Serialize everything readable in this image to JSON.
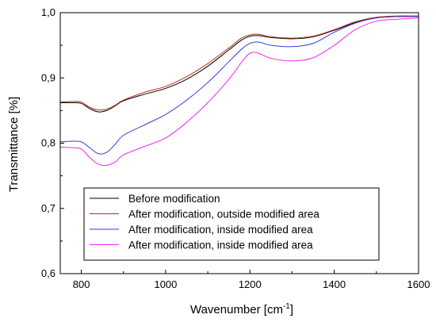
{
  "chart_data": {
    "type": "line",
    "xlabel": "Wavenumber [cm",
    "xlabel_sup": "-1",
    "xlabel_suffix": "]",
    "ylabel": "Transmittance [%]",
    "xlim": [
      750,
      1600
    ],
    "ylim": [
      0.6,
      1.0
    ],
    "x_ticks": [
      800,
      1000,
      1200,
      1400,
      1600
    ],
    "x_tick_labels": [
      "800",
      "1000",
      "1200",
      "1400",
      "1600"
    ],
    "y_ticks": [
      0.6,
      0.7,
      0.8,
      0.9,
      1.0
    ],
    "y_tick_labels": [
      "0,6",
      "0,7",
      "0,8",
      "0,9",
      "1,0"
    ],
    "grid": false,
    "legend_position": "bottom-center",
    "series": [
      {
        "name": "Before modification",
        "color": "#000000",
        "x": [
          750,
          780,
          800,
          820,
          840,
          860,
          880,
          900,
          950,
          1000,
          1050,
          1100,
          1150,
          1180,
          1200,
          1220,
          1250,
          1300,
          1350,
          1400,
          1450,
          1500,
          1550,
          1600
        ],
        "y": [
          0.862,
          0.862,
          0.861,
          0.853,
          0.848,
          0.85,
          0.857,
          0.865,
          0.875,
          0.884,
          0.898,
          0.918,
          0.943,
          0.958,
          0.964,
          0.965,
          0.962,
          0.96,
          0.963,
          0.973,
          0.985,
          0.992,
          0.994,
          0.994
        ]
      },
      {
        "name": "After modification, outside modified area",
        "color": "#b5341c",
        "x": [
          750,
          780,
          800,
          820,
          840,
          860,
          880,
          900,
          950,
          1000,
          1050,
          1100,
          1150,
          1180,
          1200,
          1220,
          1250,
          1300,
          1350,
          1400,
          1450,
          1500,
          1550,
          1600
        ],
        "y": [
          0.863,
          0.864,
          0.863,
          0.855,
          0.851,
          0.852,
          0.858,
          0.866,
          0.878,
          0.887,
          0.902,
          0.922,
          0.946,
          0.961,
          0.966,
          0.967,
          0.963,
          0.961,
          0.964,
          0.974,
          0.986,
          0.993,
          0.995,
          0.995
        ]
      },
      {
        "name": "After modification, inside modified area",
        "color": "#3a3ae0",
        "x": [
          750,
          780,
          800,
          820,
          840,
          860,
          880,
          900,
          950,
          1000,
          1050,
          1100,
          1150,
          1180,
          1200,
          1220,
          1250,
          1300,
          1350,
          1400,
          1450,
          1500,
          1550,
          1600
        ],
        "y": [
          0.802,
          0.803,
          0.802,
          0.793,
          0.784,
          0.786,
          0.798,
          0.812,
          0.828,
          0.844,
          0.866,
          0.893,
          0.925,
          0.944,
          0.953,
          0.955,
          0.95,
          0.948,
          0.953,
          0.97,
          0.984,
          0.992,
          0.994,
          0.994
        ]
      },
      {
        "name": "After modification, inside modified area",
        "color": "#ee2aee",
        "x": [
          750,
          780,
          800,
          820,
          840,
          860,
          880,
          900,
          950,
          1000,
          1050,
          1100,
          1150,
          1180,
          1200,
          1220,
          1250,
          1300,
          1350,
          1400,
          1450,
          1500,
          1550,
          1600
        ],
        "y": [
          0.794,
          0.793,
          0.791,
          0.778,
          0.768,
          0.766,
          0.771,
          0.782,
          0.795,
          0.808,
          0.832,
          0.862,
          0.898,
          0.924,
          0.938,
          0.938,
          0.93,
          0.926,
          0.931,
          0.95,
          0.974,
          0.987,
          0.99,
          0.992
        ]
      }
    ]
  }
}
